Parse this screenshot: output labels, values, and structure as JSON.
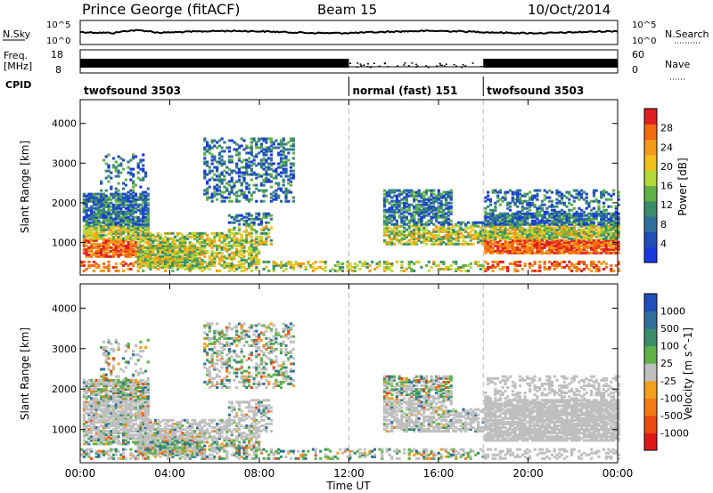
{
  "header": {
    "station": "Prince George (fitACF)",
    "beam": "Beam 15",
    "date": "10/Oct/2014"
  },
  "panels": {
    "nsky_label": "N.Sky",
    "nsky_scale": {
      "top": "10^5",
      "bottom": "10^0"
    },
    "nsearch_label": "N.Search",
    "nsearch_scale": {
      "top": "10^5",
      "bottom": "10^0"
    },
    "freq_label_1": "Freq.",
    "freq_label_2": "[MHz]",
    "freq_scale": {
      "top": "18",
      "bottom": "8"
    },
    "nave_label": "Nave",
    "nave_scale": {
      "top": "60",
      "bottom": "0"
    },
    "cpid_label": "CPID"
  },
  "cpid_segments": [
    {
      "label": "twofsound 3503",
      "start_hour": 0,
      "end_hour": 12
    },
    {
      "label": "normal (fast) 151",
      "start_hour": 12,
      "end_hour": 18
    },
    {
      "label": "twofsound 3503",
      "start_hour": 18,
      "end_hour": 24
    }
  ],
  "power_bar": {
    "label": "Power [dB]",
    "ticks": [
      "28",
      "24",
      "20",
      "16",
      "12",
      "8",
      "4"
    ],
    "colors": [
      "#e02020",
      "#f46a10",
      "#f39a18",
      "#f2c01b",
      "#b6d93a",
      "#5fb148",
      "#3a8d6a",
      "#2f6f9c",
      "#1f4fb8",
      "#1838e0"
    ]
  },
  "velocity_bar": {
    "label": "Velocity [m s^-1]",
    "ticks": [
      "1000",
      "500",
      "100",
      "25",
      "-25",
      "-100",
      "-500",
      "-1000"
    ],
    "colors": [
      "#1f4fb8",
      "#2f6f9c",
      "#3a8d6a",
      "#5fb148",
      "#bfbfbf",
      "#f2a11b",
      "#f47a15",
      "#ea4a12",
      "#e01818"
    ]
  },
  "chart_data": [
    {
      "type": "line",
      "title": "N.Sky",
      "x_range_hours": [
        0,
        24
      ],
      "y_scale": "log",
      "yrange": [
        1,
        100000
      ]
    },
    {
      "type": "line",
      "title": "Freq. [MHz]",
      "x_range_hours": [
        0,
        24
      ],
      "yrange": [
        8,
        18
      ],
      "secondary_yrange": [
        0,
        60
      ]
    },
    {
      "type": "heatmap",
      "title": "Power",
      "xlabel": "Time UT",
      "ylabel": "Slant Range [km]",
      "x_tick_labels": [
        "00:00",
        "04:00",
        "08:00",
        "12:00",
        "16:00",
        "20:00",
        "00:00"
      ],
      "x_ticks_hours": [
        0,
        4,
        8,
        12,
        16,
        20,
        24
      ],
      "y_ticks": [
        1000,
        2000,
        3000,
        4000
      ],
      "ylim": [
        180,
        4600
      ],
      "colorbar": "Power [dB]",
      "colorbar_range": [
        0,
        30
      ],
      "mode_change_hours": [
        12,
        18
      ]
    },
    {
      "type": "heatmap",
      "title": "Velocity",
      "xlabel": "Time UT",
      "ylabel": "Slant Range [km]",
      "x_tick_labels": [
        "00:00",
        "04:00",
        "08:00",
        "12:00",
        "16:00",
        "20:00",
        "00:00"
      ],
      "x_ticks_hours": [
        0,
        4,
        8,
        12,
        16,
        20,
        24
      ],
      "y_ticks": [
        1000,
        2000,
        3000,
        4000
      ],
      "ylim": [
        180,
        4600
      ],
      "colorbar": "Velocity [m s^-1]",
      "colorbar_range": [
        -1000,
        1000
      ],
      "mode_change_hours": [
        12,
        18
      ]
    }
  ],
  "x_axis": {
    "label": "Time UT",
    "tick_labels": [
      "00:00",
      "04:00",
      "08:00",
      "12:00",
      "16:00",
      "20:00",
      "00:00"
    ]
  },
  "y_axis_label": "Slant Range [km]",
  "y_tick_labels": [
    "1000",
    "2000",
    "3000",
    "4000"
  ]
}
